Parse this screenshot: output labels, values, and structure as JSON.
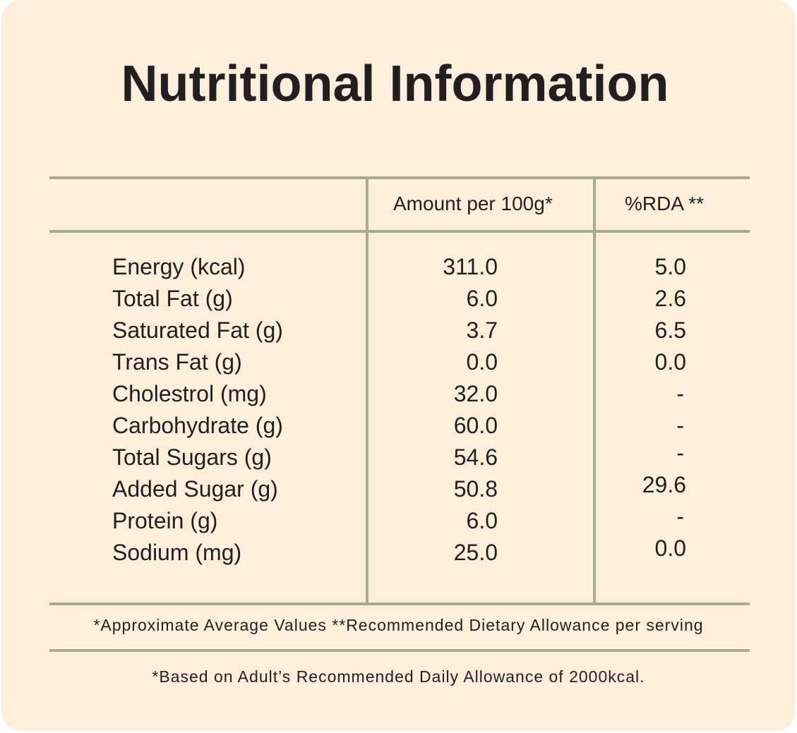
{
  "title": "Nutritional Information",
  "table": {
    "headers": {
      "amount": "Amount per 100g*",
      "rda": "%RDA **"
    },
    "rows": [
      {
        "label": "Energy (kcal)",
        "amount": "311.0",
        "rda": "5.0"
      },
      {
        "label": "Total Fat (g)",
        "amount": "6.0",
        "rda": "2.6"
      },
      {
        "label": "Saturated Fat (g)",
        "amount": "3.7",
        "rda": "6.5"
      },
      {
        "label": "Trans Fat (g)",
        "amount": "0.0",
        "rda": "0.0"
      },
      {
        "label": "Cholestrol (mg)",
        "amount": "32.0",
        "rda": "-"
      },
      {
        "label": "Carbohydrate (g)",
        "amount": "60.0",
        "rda": "-"
      },
      {
        "label": "Total Sugars (g)",
        "amount": "54.6",
        "rda": "-"
      },
      {
        "label": "Added Sugar (g)",
        "amount": "50.8",
        "rda": "29.6"
      },
      {
        "label": "Protein (g)",
        "amount": "6.0",
        "rda": "-"
      },
      {
        "label": "Sodium (mg)",
        "amount": "25.0",
        "rda": "0.0"
      }
    ]
  },
  "footnotes": {
    "line1": "*Approximate Average Values  **Recommended Dietary Allowance per serving",
    "line2": "*Based on Adult’s Recommended Daily Allowance of 2000kcal."
  },
  "colors": {
    "background": "#fdefdb",
    "rule": "#a6ad8a",
    "text": "#231f20"
  }
}
